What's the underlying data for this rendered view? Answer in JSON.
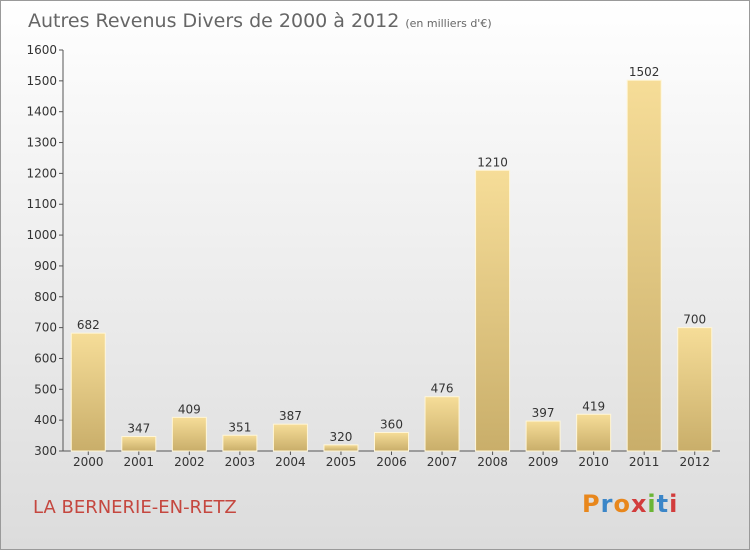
{
  "header": {
    "title": "Autres Revenus Divers de 2000 à 2012",
    "unit": "(en milliers d'€)"
  },
  "footer": {
    "place": "LA BERNERIE-EN-RETZ",
    "logo": "Proxiti"
  },
  "colors": {
    "bar_light": "#f6dd98",
    "bar_dark": "#c9ae6a",
    "place_text": "#c5473f",
    "logo_letters": [
      "#e8871c",
      "#3b86c8",
      "#e8871c",
      "#d23c3c",
      "#6bb536",
      "#3b86c8",
      "#d23c3c"
    ]
  },
  "chart_data": {
    "type": "bar",
    "title": "Autres Revenus Divers de 2000 à 2012",
    "subtitle": "(en milliers d'€)",
    "categories": [
      "2000",
      "2001",
      "2002",
      "2003",
      "2004",
      "2005",
      "2006",
      "2007",
      "2008",
      "2009",
      "2010",
      "2011",
      "2012"
    ],
    "values": [
      682,
      347,
      409,
      351,
      387,
      320,
      360,
      476,
      1210,
      397,
      419,
      1502,
      700
    ],
    "ylim": [
      300,
      1600
    ],
    "yticks": [
      300,
      400,
      500,
      600,
      700,
      800,
      900,
      1000,
      1100,
      1200,
      1300,
      1400,
      1500,
      1600
    ],
    "grid": false,
    "data_labels": true
  }
}
